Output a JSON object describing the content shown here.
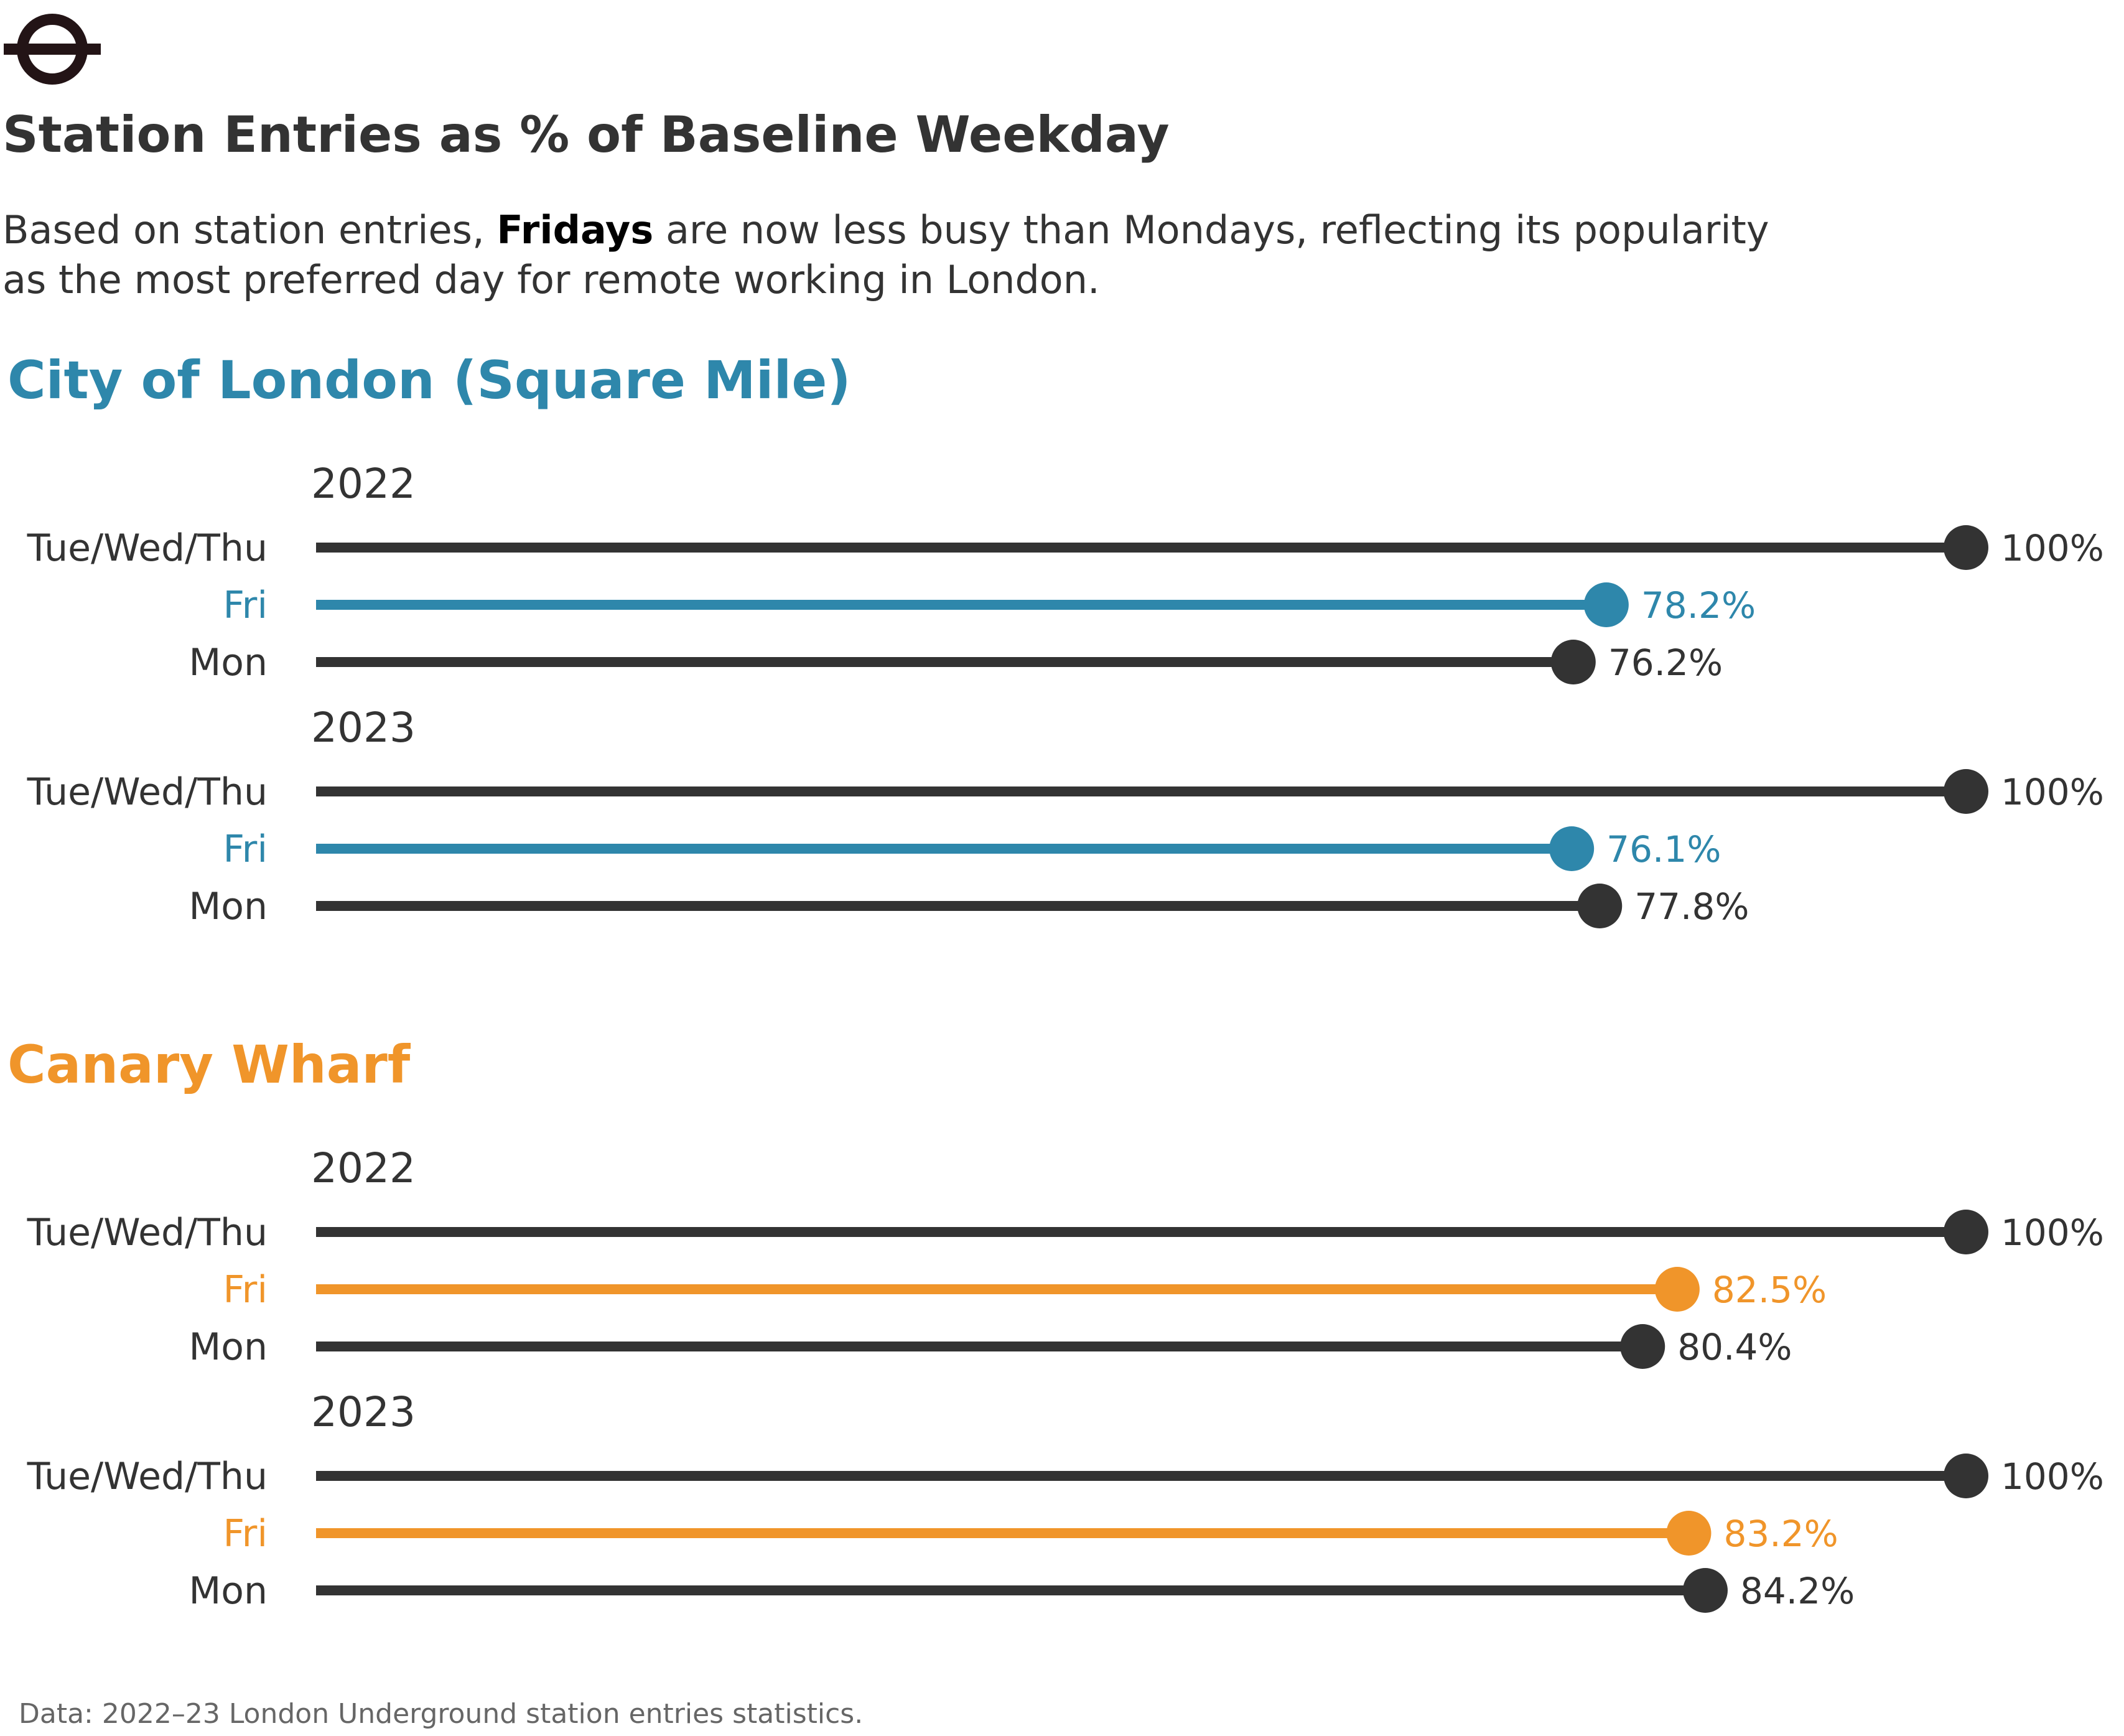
{
  "title": "Station Entries as % of Baseline Weekday",
  "subtitle_before": "Based on station entries, ",
  "subtitle_emphasis": "Fridays",
  "subtitle_after": " are now less busy than Mondays, reflecting its popularity as the most preferred day for remote working in London.",
  "source": "Data: 2022–23 London Underground station entries statistics.",
  "logo_icon": "london-underground-roundel-icon",
  "colors": {
    "text": "#333333",
    "baseline": "#333333",
    "city": "#2E87AB",
    "canary": "#F0952A",
    "source": "#666666"
  },
  "chart_data": {
    "type": "lollipop",
    "xlim": [
      0,
      100
    ],
    "panels": [
      {
        "title": "City of London (Square Mile)",
        "accent": "#2E87AB",
        "groups": [
          {
            "year": "2022",
            "rows": [
              {
                "label": "Tue/Wed/Thu",
                "value": 100,
                "value_label": "100%",
                "highlight": false
              },
              {
                "label": "Fri",
                "value": 78.2,
                "value_label": "78.2%",
                "highlight": true
              },
              {
                "label": "Mon",
                "value": 76.2,
                "value_label": "76.2%",
                "highlight": false
              }
            ]
          },
          {
            "year": "2023",
            "rows": [
              {
                "label": "Tue/Wed/Thu",
                "value": 100,
                "value_label": "100%",
                "highlight": false
              },
              {
                "label": "Fri",
                "value": 76.1,
                "value_label": "76.1%",
                "highlight": true
              },
              {
                "label": "Mon",
                "value": 77.8,
                "value_label": "77.8%",
                "highlight": false
              }
            ]
          }
        ]
      },
      {
        "title": "Canary Wharf",
        "accent": "#F0952A",
        "groups": [
          {
            "year": "2022",
            "rows": [
              {
                "label": "Tue/Wed/Thu",
                "value": 100,
                "value_label": "100%",
                "highlight": false
              },
              {
                "label": "Fri",
                "value": 82.5,
                "value_label": "82.5%",
                "highlight": true
              },
              {
                "label": "Mon",
                "value": 80.4,
                "value_label": "80.4%",
                "highlight": false
              }
            ]
          },
          {
            "year": "2023",
            "rows": [
              {
                "label": "Tue/Wed/Thu",
                "value": 100,
                "value_label": "100%",
                "highlight": false
              },
              {
                "label": "Fri",
                "value": 83.2,
                "value_label": "83.2%",
                "highlight": true
              },
              {
                "label": "Mon",
                "value": 84.2,
                "value_label": "84.2%",
                "highlight": false
              }
            ]
          }
        ]
      }
    ]
  }
}
